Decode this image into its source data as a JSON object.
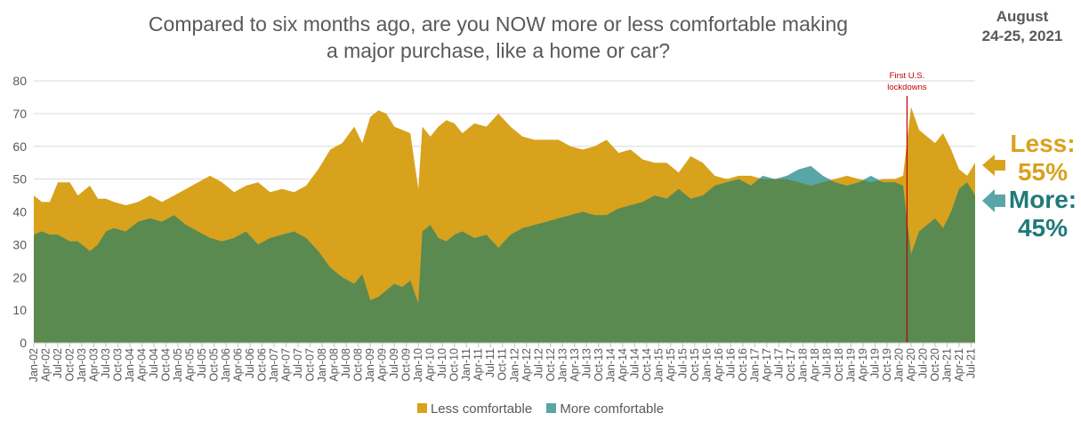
{
  "title_line1": "Compared to six months ago, are you NOW more or less comfortable making",
  "title_line2": "a major purchase, like a home or car?",
  "date_line1": "August",
  "date_line2": "24-25, 2021",
  "annotation": {
    "line1": "First U.S.",
    "line2": "lockdowns",
    "x": "2020-03",
    "color": "#c00000"
  },
  "callouts": {
    "less": {
      "line1": "Less:",
      "line2": "55%"
    },
    "more": {
      "line1": "More:",
      "line2": "45%"
    }
  },
  "colors": {
    "less": "#d8a21c",
    "more": "#5aa6a6",
    "overlap": "#5a8a4f",
    "arrow_less": "#d8a21c",
    "arrow_more": "#5aa6a6"
  },
  "chart_data": {
    "type": "area",
    "title": "Compared to six months ago, are you NOW more or less comfortable making a major purchase, like a home or car?",
    "ylim": [
      0,
      80
    ],
    "yticks": [
      0,
      10,
      20,
      30,
      40,
      50,
      60,
      70,
      80
    ],
    "x_range": [
      "2002-01",
      "2021-08"
    ],
    "xticks": [
      "Jan-02",
      "Apr-02",
      "Jul-02",
      "Oct-02",
      "Jan-03",
      "Apr-03",
      "Jul-03",
      "Oct-03",
      "Jan-04",
      "Apr-04",
      "Jul-04",
      "Oct-04",
      "Jan-05",
      "Apr-05",
      "Jul-05",
      "Oct-05",
      "Jan-06",
      "Apr-06",
      "Jul-06",
      "Oct-06",
      "Jan-07",
      "Apr-07",
      "Jul-07",
      "Oct-07",
      "Jan-08",
      "Apr-08",
      "Jul-08",
      "Oct-08",
      "Jan-09",
      "Apr-09",
      "Jul-09",
      "Oct-09",
      "Jan-10",
      "Apr-10",
      "Jul-10",
      "Oct-10",
      "Jan-11",
      "Apr-11",
      "Jul-11",
      "Oct-11",
      "Jan-12",
      "Apr-12",
      "Jul-12",
      "Oct-12",
      "Jan-13",
      "Apr-13",
      "Jul-13",
      "Oct-13",
      "Jan-14",
      "Apr-14",
      "Jul-14",
      "Oct-14",
      "Jan-15",
      "Apr-15",
      "Jul-15",
      "Oct-15",
      "Jan-16",
      "Apr-16",
      "Jul-16",
      "Oct-16",
      "Jan-17",
      "Apr-17",
      "Jul-17",
      "Oct-17",
      "Jan-18",
      "Apr-18",
      "Jul-18",
      "Oct-18",
      "Jan-19",
      "Apr-19",
      "Jul-19",
      "Oct-19",
      "Jan-20",
      "Apr-20",
      "Jul-20",
      "Oct-20",
      "Jan-21",
      "Apr-21",
      "Jul-21"
    ],
    "series": [
      {
        "name": "Less comfortable",
        "points": [
          [
            "2002-01",
            45
          ],
          [
            "2002-03",
            43
          ],
          [
            "2002-05",
            43
          ],
          [
            "2002-07",
            49
          ],
          [
            "2002-10",
            49
          ],
          [
            "2002-12",
            45
          ],
          [
            "2003-03",
            48
          ],
          [
            "2003-05",
            44
          ],
          [
            "2003-07",
            44
          ],
          [
            "2003-09",
            43
          ],
          [
            "2003-12",
            42
          ],
          [
            "2004-03",
            43
          ],
          [
            "2004-06",
            45
          ],
          [
            "2004-09",
            43
          ],
          [
            "2004-12",
            45
          ],
          [
            "2005-03",
            47
          ],
          [
            "2005-06",
            49
          ],
          [
            "2005-09",
            51
          ],
          [
            "2005-12",
            49
          ],
          [
            "2006-03",
            46
          ],
          [
            "2006-06",
            48
          ],
          [
            "2006-09",
            49
          ],
          [
            "2006-12",
            46
          ],
          [
            "2007-03",
            47
          ],
          [
            "2007-06",
            46
          ],
          [
            "2007-09",
            48
          ],
          [
            "2007-12",
            53
          ],
          [
            "2008-03",
            59
          ],
          [
            "2008-06",
            61
          ],
          [
            "2008-09",
            66
          ],
          [
            "2008-11",
            61
          ],
          [
            "2009-01",
            69
          ],
          [
            "2009-03",
            71
          ],
          [
            "2009-05",
            70
          ],
          [
            "2009-07",
            66
          ],
          [
            "2009-09",
            65
          ],
          [
            "2009-11",
            64
          ],
          [
            "2010-01",
            47
          ],
          [
            "2010-02",
            66
          ],
          [
            "2010-04",
            63
          ],
          [
            "2010-06",
            66
          ],
          [
            "2010-08",
            68
          ],
          [
            "2010-10",
            67
          ],
          [
            "2010-12",
            64
          ],
          [
            "2011-03",
            67
          ],
          [
            "2011-06",
            66
          ],
          [
            "2011-09",
            70
          ],
          [
            "2011-12",
            66
          ],
          [
            "2012-03",
            63
          ],
          [
            "2012-06",
            62
          ],
          [
            "2012-09",
            62
          ],
          [
            "2012-12",
            62
          ],
          [
            "2013-03",
            60
          ],
          [
            "2013-06",
            59
          ],
          [
            "2013-09",
            60
          ],
          [
            "2013-12",
            62
          ],
          [
            "2014-03",
            58
          ],
          [
            "2014-06",
            59
          ],
          [
            "2014-09",
            56
          ],
          [
            "2014-12",
            55
          ],
          [
            "2015-03",
            55
          ],
          [
            "2015-06",
            52
          ],
          [
            "2015-09",
            57
          ],
          [
            "2015-12",
            55
          ],
          [
            "2016-03",
            51
          ],
          [
            "2016-06",
            50
          ],
          [
            "2016-09",
            51
          ],
          [
            "2016-12",
            51
          ],
          [
            "2017-03",
            50
          ],
          [
            "2017-06",
            50
          ],
          [
            "2017-09",
            50
          ],
          [
            "2017-12",
            49
          ],
          [
            "2018-03",
            48
          ],
          [
            "2018-06",
            49
          ],
          [
            "2018-09",
            50
          ],
          [
            "2018-12",
            51
          ],
          [
            "2019-03",
            50
          ],
          [
            "2019-06",
            49
          ],
          [
            "2019-09",
            50
          ],
          [
            "2019-12",
            50
          ],
          [
            "2020-02",
            51
          ],
          [
            "2020-04",
            72
          ],
          [
            "2020-06",
            65
          ],
          [
            "2020-08",
            63
          ],
          [
            "2020-10",
            61
          ],
          [
            "2020-12",
            64
          ],
          [
            "2021-02",
            59
          ],
          [
            "2021-04",
            53
          ],
          [
            "2021-06",
            51
          ],
          [
            "2021-08",
            55
          ]
        ]
      },
      {
        "name": "More comfortable",
        "points": [
          [
            "2002-01",
            33
          ],
          [
            "2002-03",
            34
          ],
          [
            "2002-05",
            33
          ],
          [
            "2002-07",
            33
          ],
          [
            "2002-10",
            31
          ],
          [
            "2002-12",
            31
          ],
          [
            "2003-03",
            28
          ],
          [
            "2003-05",
            30
          ],
          [
            "2003-07",
            34
          ],
          [
            "2003-09",
            35
          ],
          [
            "2003-12",
            34
          ],
          [
            "2004-03",
            37
          ],
          [
            "2004-06",
            38
          ],
          [
            "2004-09",
            37
          ],
          [
            "2004-12",
            39
          ],
          [
            "2005-03",
            36
          ],
          [
            "2005-06",
            34
          ],
          [
            "2005-09",
            32
          ],
          [
            "2005-12",
            31
          ],
          [
            "2006-03",
            32
          ],
          [
            "2006-06",
            34
          ],
          [
            "2006-09",
            30
          ],
          [
            "2006-12",
            32
          ],
          [
            "2007-03",
            33
          ],
          [
            "2007-06",
            34
          ],
          [
            "2007-09",
            32
          ],
          [
            "2007-12",
            28
          ],
          [
            "2008-03",
            23
          ],
          [
            "2008-06",
            20
          ],
          [
            "2008-09",
            18
          ],
          [
            "2008-11",
            21
          ],
          [
            "2009-01",
            13
          ],
          [
            "2009-03",
            14
          ],
          [
            "2009-05",
            16
          ],
          [
            "2009-07",
            18
          ],
          [
            "2009-09",
            17
          ],
          [
            "2009-11",
            19
          ],
          [
            "2010-01",
            12
          ],
          [
            "2010-02",
            34
          ],
          [
            "2010-04",
            36
          ],
          [
            "2010-06",
            32
          ],
          [
            "2010-08",
            31
          ],
          [
            "2010-10",
            33
          ],
          [
            "2010-12",
            34
          ],
          [
            "2011-03",
            32
          ],
          [
            "2011-06",
            33
          ],
          [
            "2011-09",
            29
          ],
          [
            "2011-12",
            33
          ],
          [
            "2012-03",
            35
          ],
          [
            "2012-06",
            36
          ],
          [
            "2012-09",
            37
          ],
          [
            "2012-12",
            38
          ],
          [
            "2013-03",
            39
          ],
          [
            "2013-06",
            40
          ],
          [
            "2013-09",
            39
          ],
          [
            "2013-12",
            39
          ],
          [
            "2014-03",
            41
          ],
          [
            "2014-06",
            42
          ],
          [
            "2014-09",
            43
          ],
          [
            "2014-12",
            45
          ],
          [
            "2015-03",
            44
          ],
          [
            "2015-06",
            47
          ],
          [
            "2015-09",
            44
          ],
          [
            "2015-12",
            45
          ],
          [
            "2016-03",
            48
          ],
          [
            "2016-06",
            49
          ],
          [
            "2016-09",
            50
          ],
          [
            "2016-12",
            48
          ],
          [
            "2017-03",
            51
          ],
          [
            "2017-06",
            50
          ],
          [
            "2017-09",
            51
          ],
          [
            "2017-12",
            53
          ],
          [
            "2018-03",
            54
          ],
          [
            "2018-06",
            51
          ],
          [
            "2018-09",
            49
          ],
          [
            "2018-12",
            48
          ],
          [
            "2019-03",
            49
          ],
          [
            "2019-06",
            51
          ],
          [
            "2019-09",
            49
          ],
          [
            "2019-12",
            49
          ],
          [
            "2020-02",
            48
          ],
          [
            "2020-04",
            27
          ],
          [
            "2020-06",
            34
          ],
          [
            "2020-08",
            36
          ],
          [
            "2020-10",
            38
          ],
          [
            "2020-12",
            35
          ],
          [
            "2021-02",
            40
          ],
          [
            "2021-04",
            47
          ],
          [
            "2021-06",
            49
          ],
          [
            "2021-08",
            45
          ]
        ]
      }
    ],
    "legend": [
      "Less comfortable",
      "More comfortable"
    ],
    "legend_position": "bottom"
  }
}
